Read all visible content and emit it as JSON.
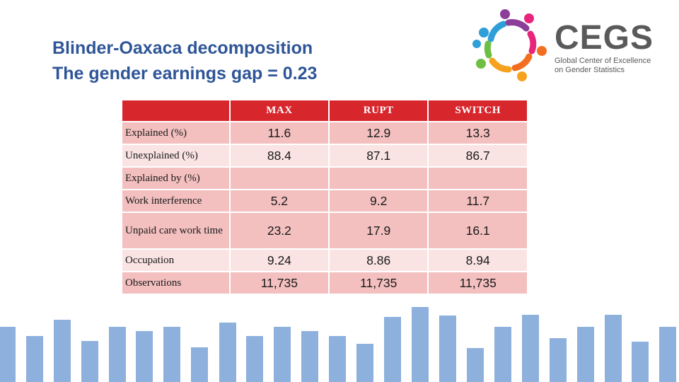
{
  "title": {
    "line1": "Blinder-Oaxaca decomposition",
    "line2": "The gender earnings gap = 0.23"
  },
  "logo": {
    "name": "CEGS",
    "subtitle_line1": "Global Center of Excellence",
    "subtitle_line2": "on Gender Statistics"
  },
  "table": {
    "headers": [
      "",
      "MAX",
      "RUPT",
      "SWITCH"
    ],
    "rows": [
      {
        "label": "Explained  (%)",
        "values": [
          "11.6",
          "12.9",
          "13.3"
        ]
      },
      {
        "label": "Unexplained (%)",
        "values": [
          "88.4",
          "87.1",
          "86.7"
        ]
      },
      {
        "label": "Explained by (%)",
        "values": [
          "",
          "",
          ""
        ]
      },
      {
        "label": "Work interference",
        "values": [
          "5.2",
          "9.2",
          "11.7"
        ]
      },
      {
        "label": "Unpaid care work time",
        "values": [
          "23.2",
          "17.9",
          "16.1"
        ]
      },
      {
        "label": "Occupation",
        "values": [
          "9.24",
          "8.86",
          "8.94"
        ]
      },
      {
        "label": "Observations",
        "values": [
          "11,735",
          "11,735",
          "11,735"
        ]
      }
    ]
  },
  "colors": {
    "title": "#2e5597",
    "header": "#d7262c",
    "row_dark": "#f3bfbf",
    "row_light": "#fae4e3",
    "bars": "#8eb0dc"
  }
}
